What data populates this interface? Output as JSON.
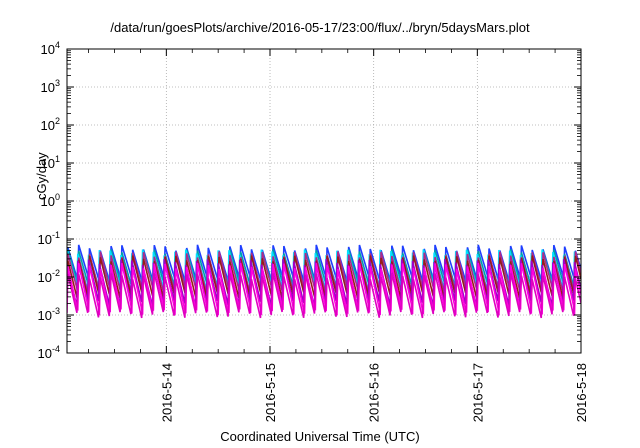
{
  "chart_data": {
    "type": "line",
    "title": "/data/run/goesPlots/archive/2016-05-17/23:00/flux/../bryn/5daysMars.plot",
    "xlabel": "Coordinated Universal Time (UTC)",
    "ylabel": "cGy/day",
    "yscale": "log",
    "ylim_exponents": [
      -4,
      4
    ],
    "y_ticks": [
      {
        "base": "10",
        "exp": "4"
      },
      {
        "base": "10",
        "exp": "3"
      },
      {
        "base": "10",
        "exp": "2"
      },
      {
        "base": "10",
        "exp": "1"
      },
      {
        "base": "10",
        "exp": "0"
      },
      {
        "base": "10",
        "exp": "-1"
      },
      {
        "base": "10",
        "exp": "-2"
      },
      {
        "base": "10",
        "exp": "-3"
      },
      {
        "base": "10",
        "exp": "-4"
      }
    ],
    "x_range": [
      "2016-05-13T01:00",
      "2016-05-18T00:00"
    ],
    "x_ticks": [
      "2016-5-14",
      "2016-5-15",
      "2016-5-16",
      "2016-5-17",
      "2016-5-18"
    ],
    "grid": true,
    "cycle_hours": 2.5,
    "series": [
      {
        "color": "#1f3fff",
        "peak": 0.06,
        "trough": 0.008
      },
      {
        "color": "#00a0a8",
        "peak": 0.05,
        "trough": 0.006
      },
      {
        "color": "#00e0ff",
        "peak": 0.045,
        "trough": 0.005
      },
      {
        "color": "#b0288a",
        "peak": 0.04,
        "trough": 0.004
      },
      {
        "color": "#9a1a1a",
        "peak": 0.035,
        "trough": 0.003
      },
      {
        "color": "#a000c8",
        "peak": 0.025,
        "trough": 0.002
      },
      {
        "color": "#ff00e0",
        "peak": 0.02,
        "trough": 0.0012
      },
      {
        "color": "#e000c0",
        "peak": 0.012,
        "trough": 0.0009
      }
    ]
  }
}
